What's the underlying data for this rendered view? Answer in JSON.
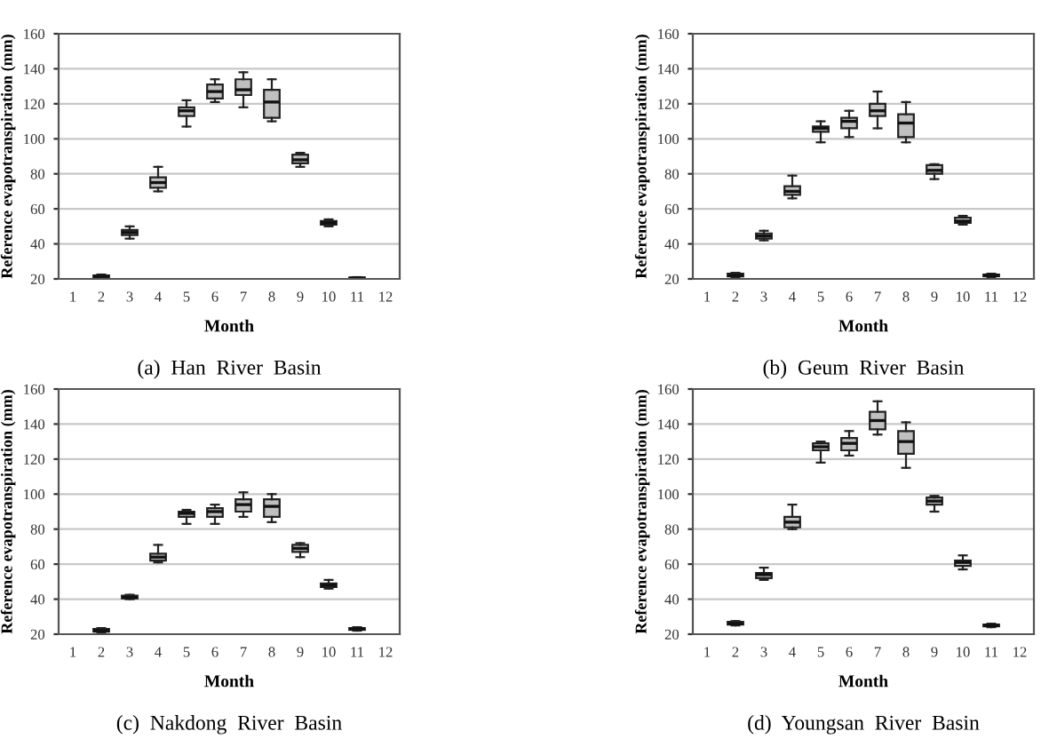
{
  "chart_data": [
    {
      "type": "box",
      "title": "(a)  Han  River  Basin",
      "xlabel": "Month",
      "ylabel": "Reference evapotranspiration (mm)",
      "categories": [
        "1",
        "2",
        "3",
        "4",
        "5",
        "6",
        "7",
        "8",
        "9",
        "10",
        "11",
        "12"
      ],
      "color": "#c0c0c0",
      "ylim": [
        20,
        160
      ],
      "yticks": [
        20,
        40,
        60,
        80,
        100,
        120,
        140,
        160
      ],
      "grid": "y",
      "boxes": [
        null,
        {
          "low": 20.5,
          "q1": 21,
          "median": 21.5,
          "q3": 22,
          "high": 22.5
        },
        {
          "low": 43,
          "q1": 45,
          "median": 46.5,
          "q3": 48,
          "high": 50
        },
        {
          "low": 70,
          "q1": 72,
          "median": 75,
          "q3": 78,
          "high": 84
        },
        {
          "low": 107,
          "q1": 113,
          "median": 116,
          "q3": 118,
          "high": 122
        },
        {
          "low": 121,
          "q1": 123,
          "median": 127,
          "q3": 131,
          "high": 134
        },
        {
          "low": 118,
          "q1": 125,
          "median": 128,
          "q3": 134,
          "high": 138
        },
        {
          "low": 110,
          "q1": 112,
          "median": 121,
          "q3": 128,
          "high": 134
        },
        {
          "low": 84,
          "q1": 86,
          "median": 88,
          "q3": 91,
          "high": 92
        },
        {
          "low": 50,
          "q1": 51,
          "median": 52,
          "q3": 53,
          "high": 54
        },
        {
          "low": 20,
          "q1": 20.2,
          "median": 20.5,
          "q3": 20.8,
          "high": 21
        },
        null
      ]
    },
    {
      "type": "box",
      "title": "(b)  Geum  River  Basin",
      "xlabel": "Month",
      "ylabel": "Reference evapotranspiration (mm)",
      "categories": [
        "1",
        "2",
        "3",
        "4",
        "5",
        "6",
        "7",
        "8",
        "9",
        "10",
        "11",
        "12"
      ],
      "color": "#c0c0c0",
      "ylim": [
        20,
        160
      ],
      "yticks": [
        20,
        40,
        60,
        80,
        100,
        120,
        140,
        160
      ],
      "grid": "y",
      "boxes": [
        null,
        {
          "low": 21,
          "q1": 21.5,
          "median": 22,
          "q3": 23,
          "high": 23.5
        },
        {
          "low": 42,
          "q1": 43,
          "median": 44.5,
          "q3": 46,
          "high": 47.5
        },
        {
          "low": 66,
          "q1": 68,
          "median": 70,
          "q3": 73,
          "high": 79
        },
        {
          "low": 98,
          "q1": 104,
          "median": 106,
          "q3": 107,
          "high": 110
        },
        {
          "low": 101,
          "q1": 106,
          "median": 110,
          "q3": 112,
          "high": 116
        },
        {
          "low": 106,
          "q1": 113,
          "median": 116,
          "q3": 120,
          "high": 127
        },
        {
          "low": 98,
          "q1": 101,
          "median": 109,
          "q3": 114,
          "high": 121
        },
        {
          "low": 77,
          "q1": 80,
          "median": 82,
          "q3": 85,
          "high": 85.5
        },
        {
          "low": 51,
          "q1": 52,
          "median": 53,
          "q3": 55,
          "high": 56
        },
        {
          "low": 21,
          "q1": 21.5,
          "median": 22,
          "q3": 22.5,
          "high": 23
        },
        null
      ]
    },
    {
      "type": "box",
      "title": "(c)  Nakdong  River  Basin",
      "xlabel": "Month",
      "ylabel": "Reference evapotranspiration (mm)",
      "categories": [
        "1",
        "2",
        "3",
        "4",
        "5",
        "6",
        "7",
        "8",
        "9",
        "10",
        "11",
        "12"
      ],
      "color": "#c0c0c0",
      "ylim": [
        20,
        160
      ],
      "yticks": [
        20,
        40,
        60,
        80,
        100,
        120,
        140,
        160
      ],
      "grid": "y",
      "boxes": [
        null,
        {
          "low": 21,
          "q1": 21.5,
          "median": 22,
          "q3": 23,
          "high": 23.5
        },
        {
          "low": 40,
          "q1": 40.5,
          "median": 41,
          "q3": 42,
          "high": 42.5
        },
        {
          "low": 61,
          "q1": 62,
          "median": 64,
          "q3": 66,
          "high": 71
        },
        {
          "low": 83,
          "q1": 87,
          "median": 89,
          "q3": 90,
          "high": 91
        },
        {
          "low": 83,
          "q1": 87,
          "median": 90,
          "q3": 92,
          "high": 94
        },
        {
          "low": 87,
          "q1": 90,
          "median": 94,
          "q3": 97,
          "high": 101
        },
        {
          "low": 84,
          "q1": 87,
          "median": 93,
          "q3": 97,
          "high": 100
        },
        {
          "low": 64,
          "q1": 67,
          "median": 69,
          "q3": 71,
          "high": 72
        },
        {
          "low": 46,
          "q1": 47,
          "median": 48,
          "q3": 49,
          "high": 51
        },
        {
          "low": 22,
          "q1": 22.5,
          "median": 23,
          "q3": 23.5,
          "high": 24
        },
        null
      ]
    },
    {
      "type": "box",
      "title": "(d)  Youngsan  River  Basin",
      "xlabel": "Month",
      "ylabel": "Reference evapotranspiration (mm)",
      "categories": [
        "1",
        "2",
        "3",
        "4",
        "5",
        "6",
        "7",
        "8",
        "9",
        "10",
        "11",
        "12"
      ],
      "color": "#c0c0c0",
      "ylim": [
        20,
        160
      ],
      "yticks": [
        20,
        40,
        60,
        80,
        100,
        120,
        140,
        160
      ],
      "grid": "y",
      "boxes": [
        null,
        {
          "low": 25,
          "q1": 25.5,
          "median": 26,
          "q3": 27,
          "high": 27.5
        },
        {
          "low": 51,
          "q1": 52,
          "median": 54,
          "q3": 55,
          "high": 58
        },
        {
          "low": 80,
          "q1": 81,
          "median": 84,
          "q3": 87,
          "high": 94
        },
        {
          "low": 118,
          "q1": 125,
          "median": 127,
          "q3": 129,
          "high": 130
        },
        {
          "low": 122,
          "q1": 125,
          "median": 129,
          "q3": 132,
          "high": 136
        },
        {
          "low": 134,
          "q1": 137,
          "median": 142,
          "q3": 147,
          "high": 153
        },
        {
          "low": 115,
          "q1": 123,
          "median": 130,
          "q3": 136,
          "high": 141
        },
        {
          "low": 90,
          "q1": 94,
          "median": 96,
          "q3": 98,
          "high": 99
        },
        {
          "low": 57,
          "q1": 59,
          "median": 61,
          "q3": 62,
          "high": 65
        },
        {
          "low": 24,
          "q1": 24.5,
          "median": 25,
          "q3": 25.5,
          "high": 26
        },
        null
      ]
    }
  ]
}
